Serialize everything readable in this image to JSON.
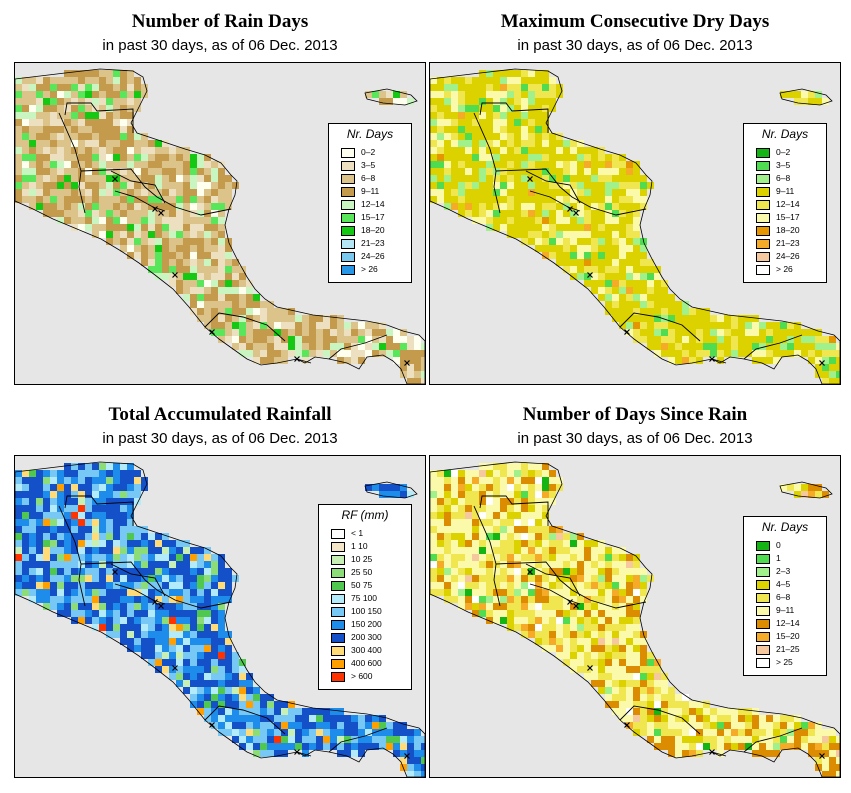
{
  "panels": [
    {
      "title": "Number of Rain Days",
      "subtitle": "in past 30 days, as of  06 Dec. 2013",
      "scheme": "raindays",
      "legend": {
        "title": "Nr. Days",
        "items": [
          {
            "label": "0–2",
            "color": "#fffff0"
          },
          {
            "label": "3–5",
            "color": "#ede0c0"
          },
          {
            "label": "6–8",
            "color": "#dcc38a"
          },
          {
            "label": "9–11",
            "color": "#c49a4c"
          },
          {
            "label": "12–14",
            "color": "#c8f5c0"
          },
          {
            "label": "15–17",
            "color": "#5ae65a"
          },
          {
            "label": "18–20",
            "color": "#14c814"
          },
          {
            "label": "21–23",
            "color": "#b4e6f5"
          },
          {
            "label": "24–26",
            "color": "#78c8f0"
          },
          {
            "label": "> 26",
            "color": "#2896e6"
          }
        ]
      }
    },
    {
      "title": "Maximum Consecutive Dry Days",
      "subtitle": "in past 30 days, as of  06 Dec. 2013",
      "scheme": "drydays",
      "legend": {
        "title": "Nr. Days",
        "items": [
          {
            "label": "0–2",
            "color": "#14b414"
          },
          {
            "label": "3–5",
            "color": "#50dc50"
          },
          {
            "label": "6–8",
            "color": "#a0f08c"
          },
          {
            "label": "9–11",
            "color": "#dcd200"
          },
          {
            "label": "12–14",
            "color": "#f0e650"
          },
          {
            "label": "15–17",
            "color": "#fafaaa"
          },
          {
            "label": "18–20",
            "color": "#e69600"
          },
          {
            "label": "21–23",
            "color": "#f5aa28"
          },
          {
            "label": "24–26",
            "color": "#f5c8a0"
          },
          {
            "label": "> 26",
            "color": "#ffffff"
          }
        ]
      }
    },
    {
      "title": "Total Accumulated Rainfall",
      "subtitle": "in past 30 days, as of  06 Dec. 2013",
      "scheme": "rainfall",
      "legend": {
        "title": "RF (mm)",
        "items": [
          {
            "label": "< 1",
            "color": "#ffffff"
          },
          {
            "label": "1  10",
            "color": "#f5e6c8"
          },
          {
            "label": "10  25",
            "color": "#c8f0b4"
          },
          {
            "label": "25  50",
            "color": "#8cdc78"
          },
          {
            "label": "50  75",
            "color": "#50c850"
          },
          {
            "label": "75  100",
            "color": "#b4ebfa"
          },
          {
            "label": "100  150",
            "color": "#78c8f5"
          },
          {
            "label": "150  200",
            "color": "#1e8ceb"
          },
          {
            "label": "200  300",
            "color": "#1450c8"
          },
          {
            "label": "300  400",
            "color": "#ffdc78"
          },
          {
            "label": "400  600",
            "color": "#ffa000"
          },
          {
            "label": "> 600",
            "color": "#ff3200"
          }
        ]
      }
    },
    {
      "title": "Number of Days Since Rain",
      "subtitle": "in past 30 days, as of  06 Dec. 2013",
      "scheme": "sincerain",
      "legend": {
        "title": "Nr. Days",
        "items": [
          {
            "label": "0",
            "color": "#14b414"
          },
          {
            "label": "1",
            "color": "#50dc50"
          },
          {
            "label": "2–3",
            "color": "#a0f08c"
          },
          {
            "label": "4–5",
            "color": "#dcd200"
          },
          {
            "label": "6–8",
            "color": "#f0e650"
          },
          {
            "label": "9–11",
            "color": "#fafaaa"
          },
          {
            "label": "12–14",
            "color": "#dc8c00"
          },
          {
            "label": "15–20",
            "color": "#f5aa28"
          },
          {
            "label": "21–25",
            "color": "#f5c8a0"
          },
          {
            "label": "> 25",
            "color": "#ffffff"
          }
        ]
      }
    }
  ]
}
